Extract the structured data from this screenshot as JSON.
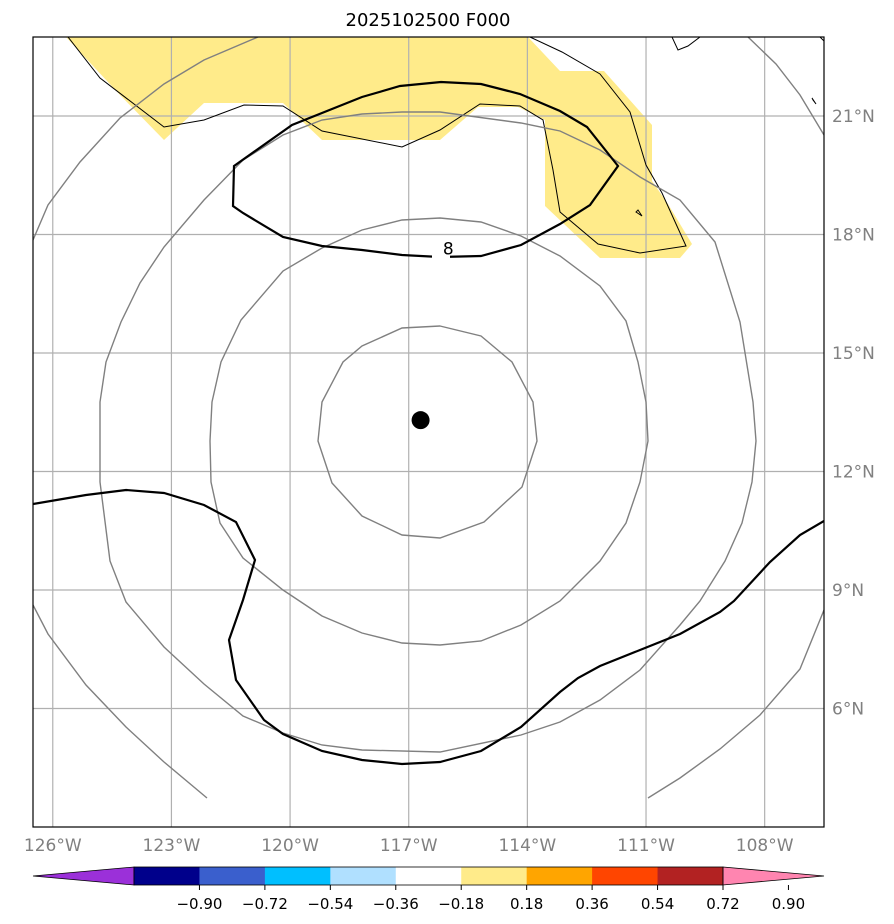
{
  "title": "2025102500 F000",
  "chart_data": {
    "type": "map",
    "projection": "lat-lon",
    "lon_range": [
      -126.5,
      -106.5
    ],
    "lat_range": [
      3.0,
      23.0
    ],
    "lon_ticks": [
      {
        "value": -126,
        "label": "126°W"
      },
      {
        "value": -123,
        "label": "123°W"
      },
      {
        "value": -120,
        "label": "120°W"
      },
      {
        "value": -117,
        "label": "117°W"
      },
      {
        "value": -114,
        "label": "114°W"
      },
      {
        "value": -111,
        "label": "111°W"
      },
      {
        "value": -108,
        "label": "108°W"
      }
    ],
    "lat_ticks": [
      {
        "value": 21,
        "label": "21°N"
      },
      {
        "value": 18,
        "label": "18°N"
      },
      {
        "value": 15,
        "label": "15°N"
      },
      {
        "value": 12,
        "label": "12°N"
      },
      {
        "value": 9,
        "label": "9°N"
      },
      {
        "value": 6,
        "label": "6°N"
      }
    ],
    "gridlines": true,
    "center_marker": {
      "lon": -116.7,
      "lat": 13.3
    },
    "contour_label": {
      "text": "8",
      "lon": -116.0,
      "lat": 17.65
    },
    "colorbar": {
      "extend": "both",
      "levels": [
        "−0.90",
        "−0.72",
        "−0.54",
        "−0.36",
        "−0.18",
        "0.18",
        "0.36",
        "0.54",
        "0.72",
        "0.90"
      ],
      "colors": [
        "#9b30d9",
        "#00008b",
        "#3a5fcd",
        "#00bfff",
        "#b0e0ff",
        "#ffffff",
        "#ffeb8a",
        "#ffa500",
        "#ff4500",
        "#b22222",
        "#ff85b0"
      ]
    },
    "fill_color": "#ffeb8a"
  }
}
